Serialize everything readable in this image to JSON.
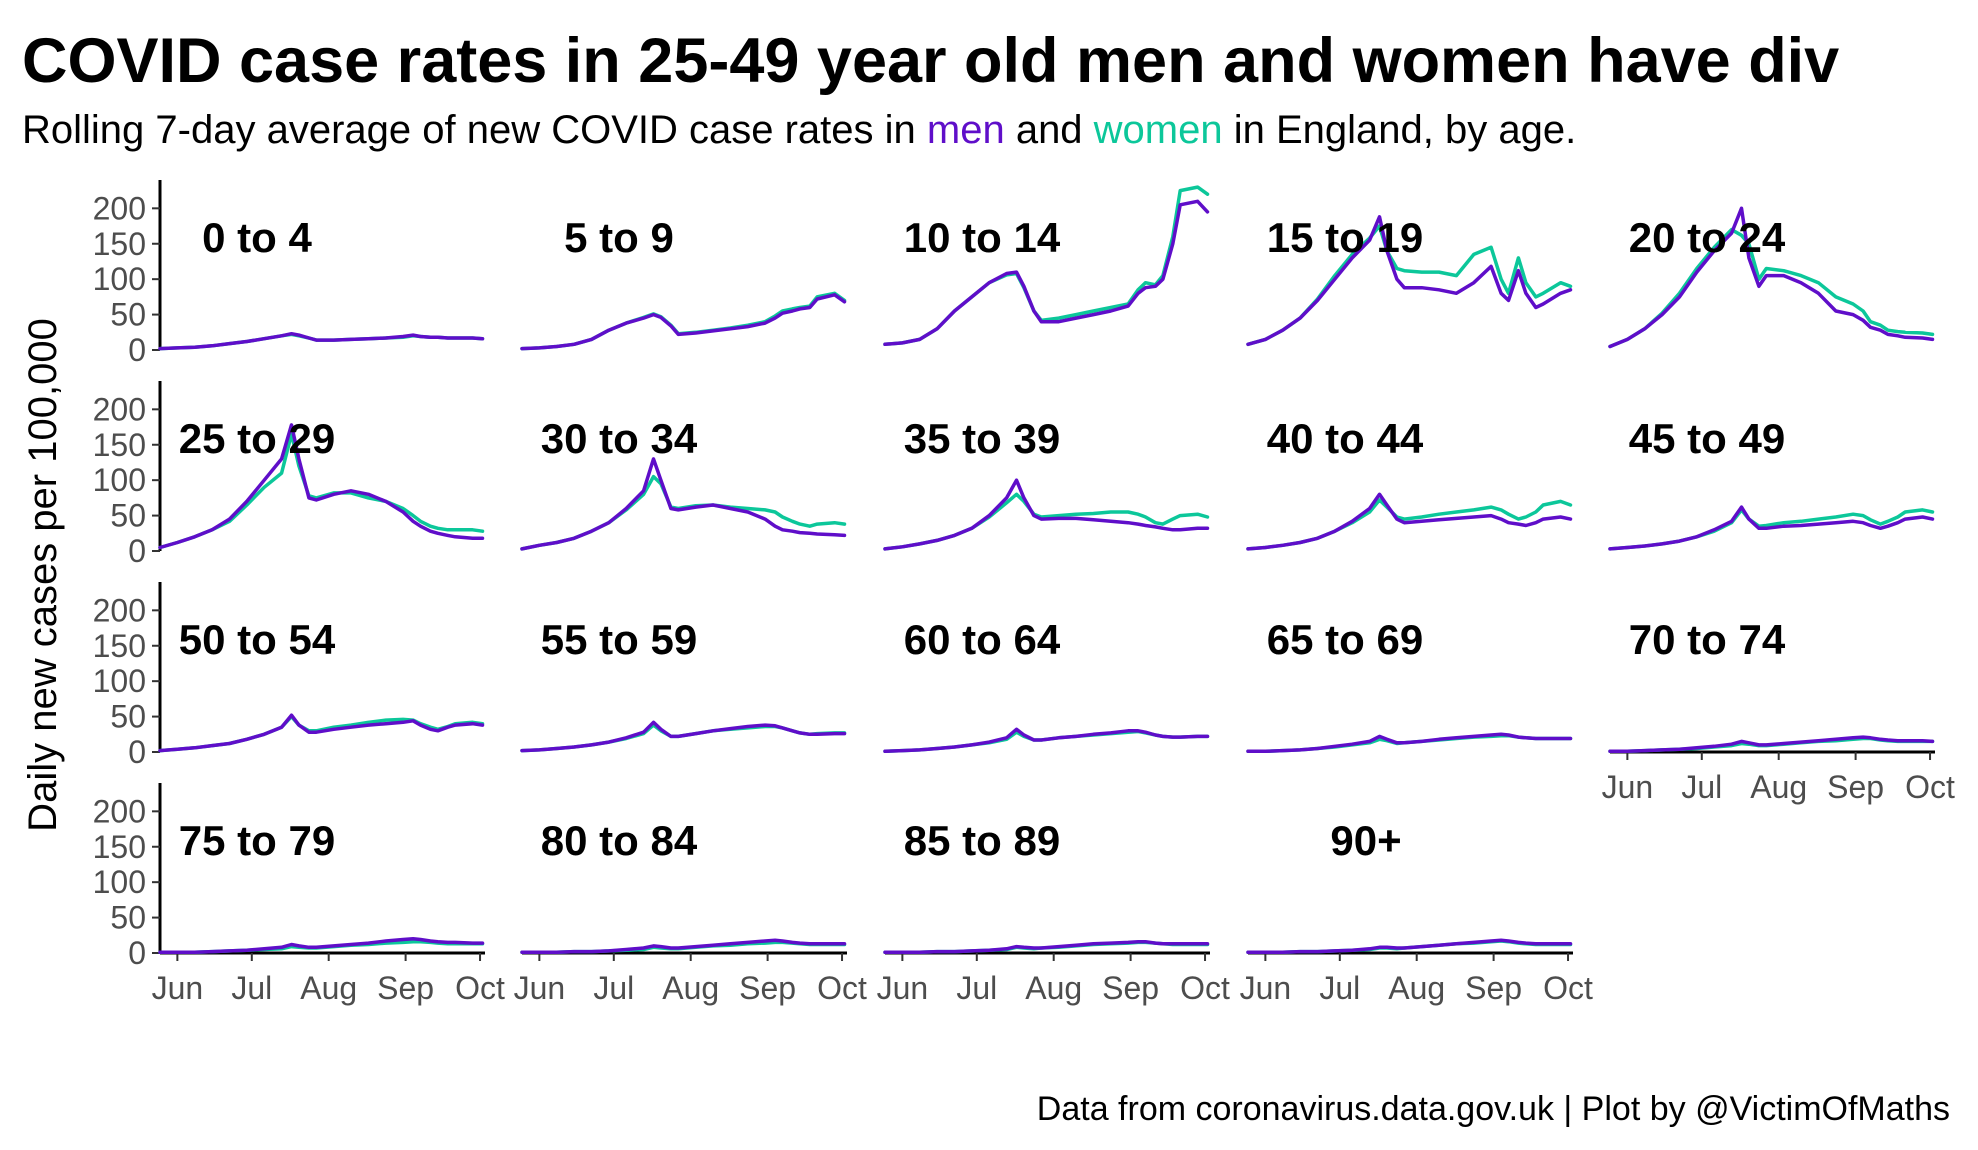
{
  "chart_data": {
    "type": "line",
    "title": "COVID case rates in 25-49 year old men and women have div",
    "subtitle": {
      "before": "Rolling 7-day average of new COVID case rates in ",
      "men": "men",
      "middle": " and ",
      "women": "women",
      "after": " in England, by age."
    },
    "ylabel": "Daily new cases per 100,000",
    "caption": "Data from coronavirus.data.gov.uk | Plot by @VictimOfMaths",
    "ylim": [
      0,
      240
    ],
    "yticks": [
      "0",
      "50",
      "100",
      "150",
      "200"
    ],
    "xlim": [
      "2021-05-25",
      "2021-10-03"
    ],
    "xticks": [
      {
        "date": "2021-06-01",
        "label": "Jun"
      },
      {
        "date": "2021-07-01",
        "label": "Jul"
      },
      {
        "date": "2021-08-01",
        "label": "Aug"
      },
      {
        "date": "2021-09-01",
        "label": "Sep"
      },
      {
        "date": "2021-10-01",
        "label": "Oct"
      }
    ],
    "colors": {
      "men": "#5f0ec9",
      "women": "#0cc79a"
    },
    "series_names": [
      "men",
      "women"
    ],
    "x": [
      "2021-05-25",
      "2021-06-01",
      "2021-06-08",
      "2021-06-15",
      "2021-06-22",
      "2021-06-29",
      "2021-07-06",
      "2021-07-13",
      "2021-07-17",
      "2021-07-20",
      "2021-07-24",
      "2021-07-27",
      "2021-08-03",
      "2021-08-10",
      "2021-08-17",
      "2021-08-24",
      "2021-08-31",
      "2021-09-04",
      "2021-09-07",
      "2021-09-11",
      "2021-09-14",
      "2021-09-18",
      "2021-09-21",
      "2021-09-28",
      "2021-10-02"
    ],
    "panels": [
      {
        "label": "0 to 4",
        "men": [
          2,
          3,
          4,
          6,
          9,
          12,
          16,
          20,
          23,
          21,
          17,
          14,
          14,
          15,
          16,
          17,
          19,
          21,
          19,
          18,
          18,
          17,
          17,
          17,
          16
        ],
        "women": [
          2,
          3,
          4,
          6,
          9,
          12,
          16,
          20,
          22,
          20,
          17,
          14,
          14,
          15,
          16,
          17,
          18,
          20,
          19,
          18,
          18,
          17,
          17,
          17,
          16
        ]
      },
      {
        "label": "5 to 9",
        "men": [
          2,
          3,
          5,
          8,
          15,
          28,
          38,
          45,
          50,
          46,
          34,
          22,
          24,
          27,
          30,
          33,
          38,
          45,
          52,
          55,
          58,
          60,
          72,
          78,
          68
        ],
        "women": [
          2,
          3,
          5,
          8,
          15,
          28,
          38,
          46,
          51,
          47,
          35,
          23,
          25,
          28,
          31,
          35,
          40,
          48,
          55,
          58,
          60,
          62,
          75,
          80,
          70
        ]
      },
      {
        "label": "10 to 14",
        "men": [
          8,
          10,
          15,
          30,
          55,
          75,
          95,
          108,
          110,
          90,
          55,
          40,
          40,
          45,
          50,
          55,
          62,
          80,
          88,
          90,
          100,
          150,
          205,
          210,
          195
        ],
        "women": [
          8,
          10,
          15,
          30,
          55,
          75,
          95,
          106,
          108,
          88,
          55,
          42,
          45,
          50,
          55,
          60,
          65,
          85,
          95,
          92,
          105,
          160,
          225,
          230,
          220
        ]
      },
      {
        "label": "15 to 19",
        "men": [
          8,
          15,
          28,
          45,
          70,
          100,
          130,
          155,
          188,
          140,
          100,
          88,
          88,
          85,
          80,
          95,
          118,
          80,
          70,
          112,
          80,
          60,
          65,
          80,
          85
        ],
        "women": [
          8,
          15,
          28,
          45,
          72,
          105,
          135,
          158,
          175,
          140,
          115,
          112,
          110,
          110,
          105,
          135,
          145,
          100,
          80,
          130,
          95,
          75,
          80,
          95,
          90
        ]
      },
      {
        "label": "20 to 24",
        "men": [
          5,
          15,
          30,
          50,
          75,
          110,
          140,
          165,
          200,
          130,
          90,
          105,
          105,
          95,
          80,
          55,
          50,
          42,
          32,
          28,
          22,
          20,
          18,
          17,
          15
        ],
        "women": [
          5,
          15,
          30,
          52,
          80,
          115,
          145,
          170,
          162,
          150,
          100,
          115,
          112,
          105,
          95,
          75,
          65,
          55,
          40,
          35,
          28,
          26,
          25,
          24,
          22
        ]
      },
      {
        "label": "25 to 29",
        "men": [
          5,
          12,
          20,
          30,
          45,
          70,
          100,
          130,
          178,
          130,
          75,
          72,
          80,
          85,
          80,
          70,
          55,
          42,
          35,
          28,
          25,
          22,
          20,
          18,
          18
        ],
        "women": [
          5,
          12,
          20,
          30,
          42,
          65,
          90,
          110,
          165,
          120,
          78,
          75,
          82,
          82,
          75,
          70,
          60,
          50,
          42,
          35,
          32,
          30,
          30,
          30,
          28
        ]
      },
      {
        "label": "30 to 34",
        "men": [
          3,
          8,
          12,
          18,
          28,
          40,
          60,
          85,
          130,
          100,
          60,
          58,
          62,
          65,
          60,
          55,
          45,
          35,
          30,
          28,
          26,
          25,
          24,
          23,
          22
        ],
        "women": [
          3,
          8,
          12,
          18,
          28,
          40,
          58,
          80,
          105,
          95,
          62,
          60,
          64,
          65,
          62,
          60,
          58,
          55,
          48,
          42,
          38,
          35,
          38,
          40,
          38
        ]
      },
      {
        "label": "35 to 39",
        "men": [
          3,
          6,
          10,
          15,
          22,
          32,
          50,
          75,
          100,
          75,
          50,
          45,
          46,
          46,
          44,
          42,
          40,
          38,
          36,
          34,
          32,
          30,
          30,
          32,
          32
        ],
        "women": [
          3,
          6,
          10,
          15,
          22,
          32,
          48,
          68,
          80,
          70,
          52,
          48,
          50,
          52,
          53,
          55,
          55,
          52,
          48,
          40,
          38,
          45,
          50,
          52,
          48
        ]
      },
      {
        "label": "40 to 44",
        "men": [
          3,
          5,
          8,
          12,
          18,
          28,
          42,
          60,
          80,
          65,
          45,
          40,
          42,
          44,
          46,
          48,
          50,
          45,
          40,
          38,
          36,
          40,
          45,
          48,
          45
        ],
        "women": [
          3,
          5,
          8,
          12,
          18,
          28,
          40,
          55,
          72,
          62,
          48,
          45,
          48,
          52,
          55,
          58,
          62,
          58,
          52,
          45,
          48,
          55,
          65,
          70,
          65
        ]
      },
      {
        "label": "45 to 49",
        "men": [
          3,
          5,
          7,
          10,
          14,
          20,
          30,
          42,
          62,
          45,
          32,
          32,
          35,
          36,
          38,
          40,
          42,
          40,
          36,
          32,
          35,
          40,
          45,
          48,
          45
        ],
        "women": [
          3,
          5,
          7,
          10,
          14,
          20,
          28,
          40,
          58,
          45,
          35,
          36,
          40,
          42,
          45,
          48,
          52,
          50,
          44,
          38,
          42,
          48,
          55,
          58,
          55
        ]
      },
      {
        "label": "50 to 54",
        "men": [
          2,
          4,
          6,
          9,
          12,
          18,
          25,
          35,
          52,
          38,
          28,
          28,
          32,
          35,
          38,
          40,
          42,
          44,
          38,
          32,
          30,
          35,
          38,
          40,
          38
        ],
        "women": [
          2,
          4,
          6,
          9,
          12,
          18,
          25,
          35,
          50,
          38,
          30,
          30,
          35,
          38,
          42,
          45,
          46,
          45,
          40,
          35,
          32,
          36,
          40,
          42,
          40
        ]
      },
      {
        "label": "55 to 59",
        "men": [
          2,
          3,
          5,
          7,
          10,
          14,
          20,
          28,
          42,
          32,
          22,
          22,
          26,
          30,
          33,
          36,
          38,
          37,
          34,
          30,
          27,
          25,
          25,
          26,
          26
        ],
        "women": [
          2,
          3,
          5,
          7,
          10,
          14,
          19,
          26,
          38,
          30,
          22,
          22,
          26,
          30,
          32,
          34,
          36,
          36,
          34,
          30,
          27,
          25,
          26,
          27,
          27
        ]
      },
      {
        "label": "60 to 64",
        "men": [
          1,
          2,
          3,
          5,
          7,
          10,
          14,
          20,
          32,
          24,
          17,
          17,
          20,
          22,
          25,
          27,
          30,
          30,
          28,
          24,
          22,
          21,
          21,
          22,
          22
        ],
        "women": [
          1,
          2,
          3,
          5,
          7,
          10,
          13,
          18,
          28,
          22,
          17,
          17,
          20,
          22,
          24,
          26,
          28,
          29,
          27,
          24,
          22,
          21,
          21,
          22,
          22
        ]
      },
      {
        "label": "65 to 69",
        "men": [
          1,
          1,
          2,
          3,
          5,
          8,
          11,
          15,
          22,
          18,
          13,
          13,
          15,
          18,
          20,
          22,
          24,
          25,
          24,
          21,
          20,
          19,
          19,
          19,
          19
        ],
        "women": [
          1,
          1,
          2,
          3,
          5,
          7,
          10,
          13,
          18,
          16,
          12,
          13,
          15,
          17,
          19,
          21,
          22,
          23,
          23,
          21,
          20,
          19,
          19,
          19,
          19
        ]
      },
      {
        "label": "70 to 74",
        "men": [
          1,
          1,
          2,
          3,
          4,
          6,
          8,
          11,
          15,
          13,
          10,
          10,
          12,
          14,
          16,
          18,
          20,
          21,
          20,
          18,
          17,
          16,
          16,
          16,
          15
        ],
        "women": [
          1,
          1,
          2,
          3,
          4,
          5,
          7,
          9,
          12,
          11,
          9,
          9,
          11,
          13,
          15,
          16,
          18,
          19,
          19,
          17,
          16,
          15,
          15,
          15,
          15
        ]
      },
      {
        "label": "75 to 79",
        "men": [
          1,
          1,
          1,
          2,
          3,
          4,
          6,
          8,
          12,
          10,
          8,
          8,
          10,
          12,
          14,
          17,
          19,
          20,
          19,
          17,
          16,
          15,
          15,
          14,
          14
        ],
        "women": [
          1,
          1,
          1,
          2,
          3,
          4,
          5,
          6,
          9,
          8,
          7,
          7,
          9,
          11,
          12,
          14,
          15,
          16,
          16,
          15,
          14,
          13,
          13,
          13,
          13
        ]
      },
      {
        "label": "80 to 84",
        "men": [
          1,
          1,
          1,
          2,
          2,
          3,
          5,
          7,
          10,
          9,
          7,
          7,
          9,
          11,
          13,
          15,
          17,
          18,
          17,
          15,
          14,
          13,
          13,
          13,
          13
        ],
        "women": [
          1,
          1,
          1,
          2,
          2,
          3,
          4,
          5,
          8,
          7,
          6,
          6,
          8,
          10,
          11,
          13,
          14,
          15,
          15,
          14,
          13,
          12,
          12,
          12,
          12
        ]
      },
      {
        "label": "85 to 89",
        "men": [
          1,
          1,
          1,
          2,
          2,
          3,
          4,
          6,
          9,
          8,
          7,
          7,
          9,
          11,
          13,
          14,
          15,
          16,
          16,
          14,
          13,
          13,
          13,
          13,
          13
        ],
        "women": [
          1,
          1,
          1,
          2,
          2,
          3,
          4,
          5,
          8,
          7,
          6,
          7,
          8,
          10,
          12,
          13,
          14,
          15,
          15,
          14,
          13,
          12,
          12,
          12,
          12
        ]
      },
      {
        "label": "90+",
        "men": [
          1,
          1,
          1,
          2,
          2,
          3,
          4,
          6,
          8,
          8,
          7,
          7,
          9,
          11,
          13,
          15,
          17,
          18,
          17,
          15,
          14,
          13,
          13,
          13,
          13
        ],
        "women": [
          1,
          1,
          1,
          2,
          2,
          3,
          4,
          5,
          7,
          7,
          6,
          7,
          9,
          11,
          13,
          14,
          16,
          17,
          16,
          14,
          13,
          12,
          12,
          12,
          12
        ]
      }
    ]
  }
}
